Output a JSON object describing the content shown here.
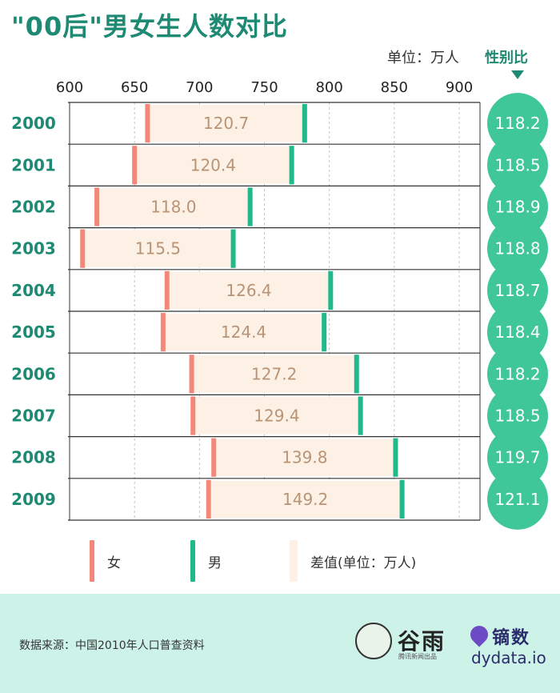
{
  "title": "\"00后\"男女生人数对比",
  "unit_label": "单位：万人",
  "ratio_header": "性别比",
  "legend": {
    "female": "女",
    "male": "男",
    "diff": "差值(单位：万人)"
  },
  "source": "数据来源：中国2010年人口普查资料",
  "logo": {
    "guyu": "谷雨",
    "guyu_sub": "腾讯新闻出品",
    "dydata_name": "镝数",
    "dydata_url": "dydata.io"
  },
  "colors": {
    "title": "#1f8a73",
    "female": "#f3887a",
    "male": "#1fb98c",
    "diff": "#fdf0e4",
    "ratio": "#3fc79a",
    "year": "#1f8a73",
    "diff_text": "#b89476",
    "footer": "#cdf3e9"
  },
  "chart_data": {
    "type": "bar",
    "xlim": [
      600,
      900
    ],
    "x_ticks": [
      "600",
      "650",
      "700",
      "750",
      "800",
      "850",
      "900"
    ],
    "categories": [
      "2000",
      "2001",
      "2002",
      "2003",
      "2004",
      "2005",
      "2006",
      "2007",
      "2008",
      "2009"
    ],
    "series": [
      {
        "name": "女",
        "values": [
          660,
          650,
          621,
          610,
          675,
          672,
          694,
          695,
          711,
          707
        ]
      },
      {
        "name": "男",
        "values": [
          781,
          771,
          739,
          726,
          801,
          796,
          821,
          824,
          851,
          856
        ]
      }
    ],
    "diff_labels": [
      "120.7",
      "120.4",
      "118.0",
      "115.5",
      "126.4",
      "124.4",
      "127.2",
      "129.4",
      "139.8",
      "149.2"
    ],
    "sex_ratio": [
      "118.2",
      "118.5",
      "118.9",
      "118.8",
      "118.7",
      "118.4",
      "118.2",
      "118.5",
      "119.7",
      "121.1"
    ]
  }
}
